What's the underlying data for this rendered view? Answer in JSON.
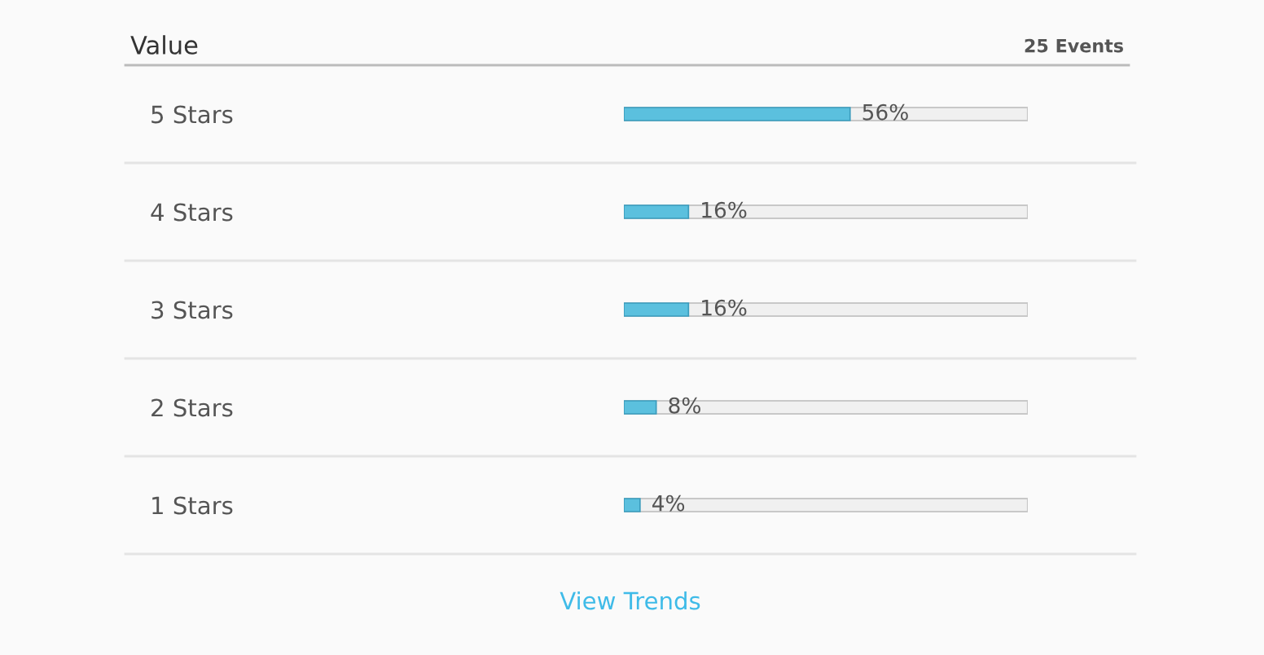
{
  "chart_data": {
    "type": "bar",
    "orientation": "horizontal",
    "title": "Value",
    "subtitle": "25 Events",
    "categories": [
      "5 Stars",
      "4 Stars",
      "3 Stars",
      "2 Stars",
      "1 Stars"
    ],
    "values": [
      56,
      16,
      16,
      8,
      4
    ],
    "value_labels": [
      "56%",
      "16%",
      "16%",
      "8%",
      "4%"
    ],
    "color": "#5bc0de",
    "xlim": [
      0,
      100
    ],
    "tick_labels": "y",
    "grid": false,
    "legend": false,
    "annotations": [
      "View Trends"
    ]
  }
}
